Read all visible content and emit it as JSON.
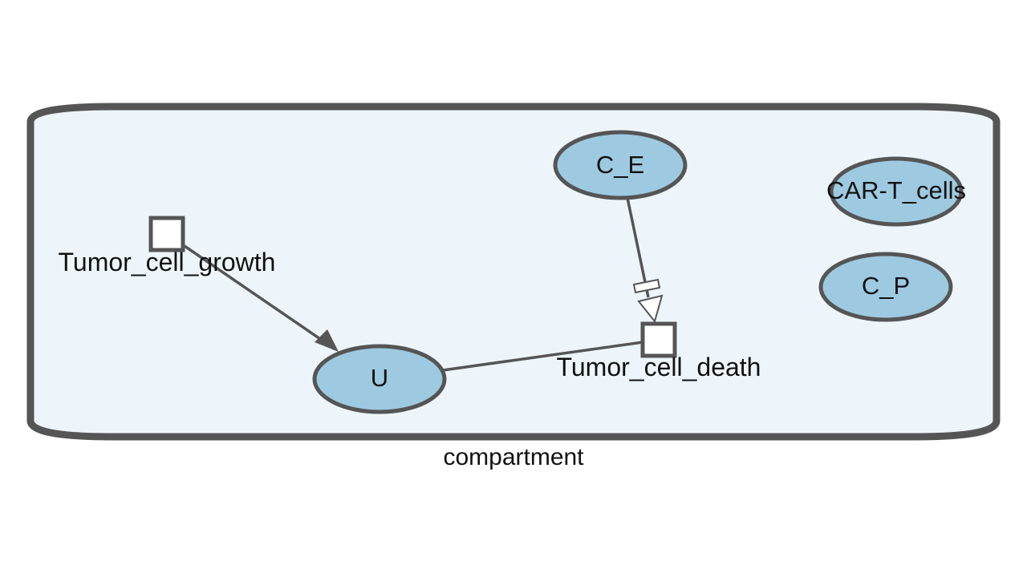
{
  "diagram": {
    "compartment": {
      "label": "compartment",
      "fill_color": "#edf5fa",
      "stroke_color": "#555555"
    },
    "species": [
      {
        "id": "C_E",
        "label": "C_E",
        "fill_color": "#9dcae1"
      },
      {
        "id": "CAR_T_cells",
        "label": "CAR-T_cells",
        "fill_color": "#9dcae1"
      },
      {
        "id": "C_P",
        "label": "C_P",
        "fill_color": "#9dcae1"
      },
      {
        "id": "U",
        "label": "U",
        "fill_color": "#9dcae1"
      }
    ],
    "reactions": [
      {
        "id": "Tumor_cell_growth",
        "label": "Tumor_cell_growth",
        "products": [
          "U"
        ]
      },
      {
        "id": "Tumor_cell_death",
        "label": "Tumor_cell_death",
        "reactants": [
          "U"
        ],
        "modifiers": [
          "C_E"
        ]
      }
    ],
    "edges": [
      {
        "from": "Tumor_cell_growth",
        "to": "U",
        "kind": "production"
      },
      {
        "from": "U",
        "to": "Tumor_cell_death",
        "kind": "consumption"
      },
      {
        "from": "C_E",
        "to": "Tumor_cell_death",
        "kind": "modifier"
      }
    ]
  }
}
